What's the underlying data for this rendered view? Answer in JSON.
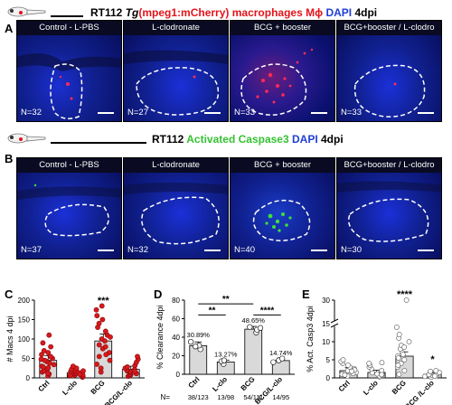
{
  "panel_labels": {
    "a": "A",
    "b": "B",
    "c": "C",
    "d": "D",
    "e": "E"
  },
  "row_a": {
    "title_prefix": "RT112",
    "title_tg": "Tg",
    "title_construct": "(mpeg1:mCherry) macrophages Mϕ",
    "title_dapi": "DAPI",
    "title_time": "4dpi",
    "panels": [
      {
        "title": "Control - L-PBS",
        "n": "N=32"
      },
      {
        "title": "L-clodronate",
        "n": "N=27"
      },
      {
        "title": "BCG + booster",
        "n": "N=33"
      },
      {
        "title": "BCG+booster / L-clodro",
        "n": "N=33"
      }
    ]
  },
  "row_b": {
    "title_prefix": "RT112",
    "title_marker": "Activated Caspase3",
    "title_dapi": "DAPI",
    "title_time": "4dpi",
    "panels": [
      {
        "title": "Control - L-PBS",
        "n": "N=37"
      },
      {
        "title": "L-clodronate",
        "n": "N=32"
      },
      {
        "title": "BCG + booster",
        "n": "N=40"
      },
      {
        "title": "BCG+booster / L-clodro",
        "n": "N=30"
      }
    ]
  },
  "chart_data": [
    {
      "type": "bar",
      "panel": "C",
      "ylabel": "# Macs 4 dpi",
      "categories": [
        "Ctrl",
        "L-clo",
        "BCG",
        "BCG/L-clo"
      ],
      "values": [
        45,
        13,
        95,
        22
      ],
      "ylim": [
        0,
        200
      ],
      "yticks": [
        "0",
        "50",
        "100",
        "150",
        "200"
      ],
      "annotation": "***",
      "colors": {
        "bar": "#d9d9d9",
        "dot": "#d7191c"
      }
    },
    {
      "type": "bar",
      "panel": "D",
      "ylabel": "% Clearance 4dpi",
      "categories": [
        "Ctrl",
        "L-clo",
        "BCG",
        "BCG/L-clo"
      ],
      "values": [
        30.89,
        13.27,
        48.65,
        14.74
      ],
      "value_labels": [
        "30.89%",
        "13.27%",
        "48.65%",
        "14.74%"
      ],
      "counts": [
        "38/123",
        "13/98",
        "54/111",
        "14/95"
      ],
      "counts_prefix": "N=",
      "ylim": [
        0,
        80
      ],
      "yticks": [
        "0",
        "20",
        "40",
        "60",
        "80"
      ],
      "significance": [
        {
          "pair": [
            "Ctrl",
            "L-clo"
          ],
          "label": "**"
        },
        {
          "pair": [
            "Ctrl",
            "BCG"
          ],
          "label": "**"
        },
        {
          "pair": [
            "BCG",
            "BCG/L-clo"
          ],
          "label": "****"
        }
      ],
      "colors": {
        "bar": "#d9d9d9",
        "dot": "#ffffff"
      }
    },
    {
      "type": "bar",
      "panel": "E",
      "ylabel": "% Act. Casp3 4dpi",
      "categories": [
        "Ctrl",
        "L-clo",
        "BCG",
        "BCG /L-clo"
      ],
      "values": [
        2.0,
        1.5,
        6.0,
        1.0
      ],
      "ylim": [
        0,
        30
      ],
      "yticks": [
        "0",
        "5",
        "10",
        "15",
        "30"
      ],
      "axis_break": [
        15,
        30
      ],
      "annotation_bcg": "****",
      "annotation_bcgl": "*",
      "colors": {
        "bar": "#d9d9d9",
        "dot": "#ffffff"
      }
    }
  ]
}
